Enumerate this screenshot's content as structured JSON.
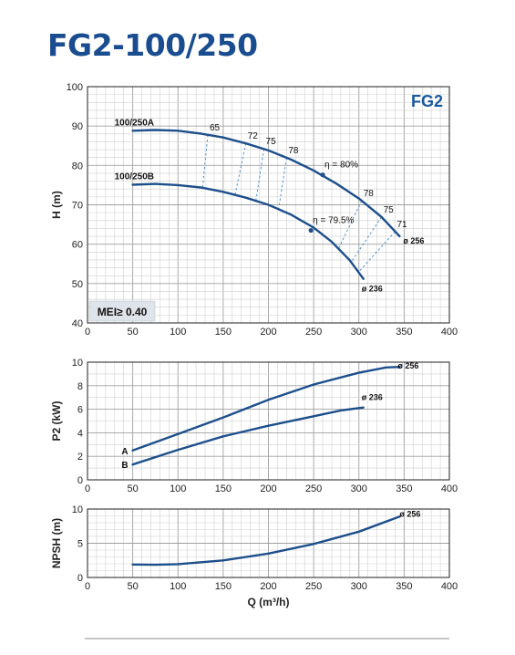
{
  "title": "FG2-100/250",
  "chart_data": [
    {
      "id": "head",
      "type": "line",
      "badge": "FG2",
      "mei": "MEI≥ 0.40",
      "ylabel": "H (m)",
      "xlim": [
        0,
        400
      ],
      "ylim": [
        40,
        100
      ],
      "xticks": [
        0,
        50,
        100,
        150,
        200,
        250,
        300,
        350,
        400
      ],
      "yticks": [
        40,
        50,
        60,
        70,
        80,
        90,
        100
      ],
      "series": [
        {
          "name": "100/250A",
          "diameter": "ø 256",
          "points": [
            [
              50,
              88.8
            ],
            [
              75,
              89.0
            ],
            [
              100,
              88.8
            ],
            [
              125,
              88.1
            ],
            [
              150,
              87.1
            ],
            [
              175,
              85.6
            ],
            [
              200,
              83.8
            ],
            [
              225,
              81.5
            ],
            [
              250,
              78.7
            ],
            [
              275,
              75.4
            ],
            [
              300,
              71.6
            ],
            [
              325,
              66.9
            ],
            [
              345,
              62.0
            ]
          ]
        },
        {
          "name": "100/250B",
          "diameter": "ø 236",
          "points": [
            [
              50,
              75.1
            ],
            [
              75,
              75.3
            ],
            [
              100,
              75.0
            ],
            [
              125,
              74.4
            ],
            [
              150,
              73.3
            ],
            [
              175,
              71.8
            ],
            [
              200,
              70.0
            ],
            [
              225,
              67.5
            ],
            [
              250,
              64.2
            ],
            [
              270,
              60.6
            ],
            [
              290,
              55.9
            ],
            [
              305,
              51.2
            ]
          ]
        }
      ],
      "efficiency_points": [
        {
          "label": "η = 80%",
          "x": 260,
          "y": 77.6
        },
        {
          "label": "η = 79.5%",
          "x": 247,
          "y": 63.5
        }
      ],
      "iso_efficiency": [
        {
          "label": "65",
          "x1": 133,
          "y1": 87.7,
          "x2": 127,
          "y2": 73.9
        },
        {
          "label": "72",
          "x1": 175,
          "y1": 85.6,
          "x2": 163,
          "y2": 72.4
        },
        {
          "label": "75",
          "x1": 195,
          "y1": 84.2,
          "x2": 186,
          "y2": 70.8
        },
        {
          "label": "78",
          "x1": 220,
          "y1": 81.9,
          "x2": 211,
          "y2": 68.5
        },
        {
          "label": "78",
          "x1": 303,
          "y1": 71.0,
          "x2": 278,
          "y2": 59.1
        },
        {
          "label": "75",
          "x1": 325,
          "y1": 66.9,
          "x2": 292,
          "y2": 55.6
        },
        {
          "label": "71",
          "x1": 340,
          "y1": 63.2,
          "x2": 300,
          "y2": 53.0
        }
      ]
    },
    {
      "id": "power",
      "type": "line",
      "ylabel": "P2 (kW)",
      "xlim": [
        0,
        400
      ],
      "ylim": [
        0,
        10
      ],
      "xticks": [
        0,
        50,
        100,
        150,
        200,
        250,
        300,
        350,
        400
      ],
      "yticks": [
        0,
        2,
        4,
        6,
        8,
        10
      ],
      "series": [
        {
          "name": "A",
          "diameter": "ø 256",
          "points": [
            [
              50,
              2.5
            ],
            [
              100,
              3.9
            ],
            [
              150,
              5.3
            ],
            [
              200,
              6.8
            ],
            [
              250,
              8.1
            ],
            [
              300,
              9.1
            ],
            [
              330,
              9.55
            ],
            [
              345,
              9.6
            ]
          ]
        },
        {
          "name": "B",
          "diameter": "ø 236",
          "points": [
            [
              50,
              1.3
            ],
            [
              100,
              2.55
            ],
            [
              150,
              3.7
            ],
            [
              200,
              4.6
            ],
            [
              250,
              5.4
            ],
            [
              280,
              5.9
            ],
            [
              305,
              6.15
            ]
          ]
        }
      ]
    },
    {
      "id": "npsh",
      "type": "line",
      "ylabel": "NPSH (m)",
      "xlabel": "Q (m³/h)",
      "xlim": [
        0,
        400
      ],
      "ylim": [
        0,
        10
      ],
      "xticks": [
        0,
        50,
        100,
        150,
        200,
        250,
        300,
        350,
        400
      ],
      "yticks": [
        0,
        5,
        10
      ],
      "series": [
        {
          "name": "",
          "diameter": "ø 256",
          "points": [
            [
              50,
              1.9
            ],
            [
              75,
              1.85
            ],
            [
              100,
              1.95
            ],
            [
              150,
              2.5
            ],
            [
              200,
              3.5
            ],
            [
              250,
              4.9
            ],
            [
              300,
              6.7
            ],
            [
              345,
              8.9
            ]
          ]
        }
      ]
    }
  ]
}
